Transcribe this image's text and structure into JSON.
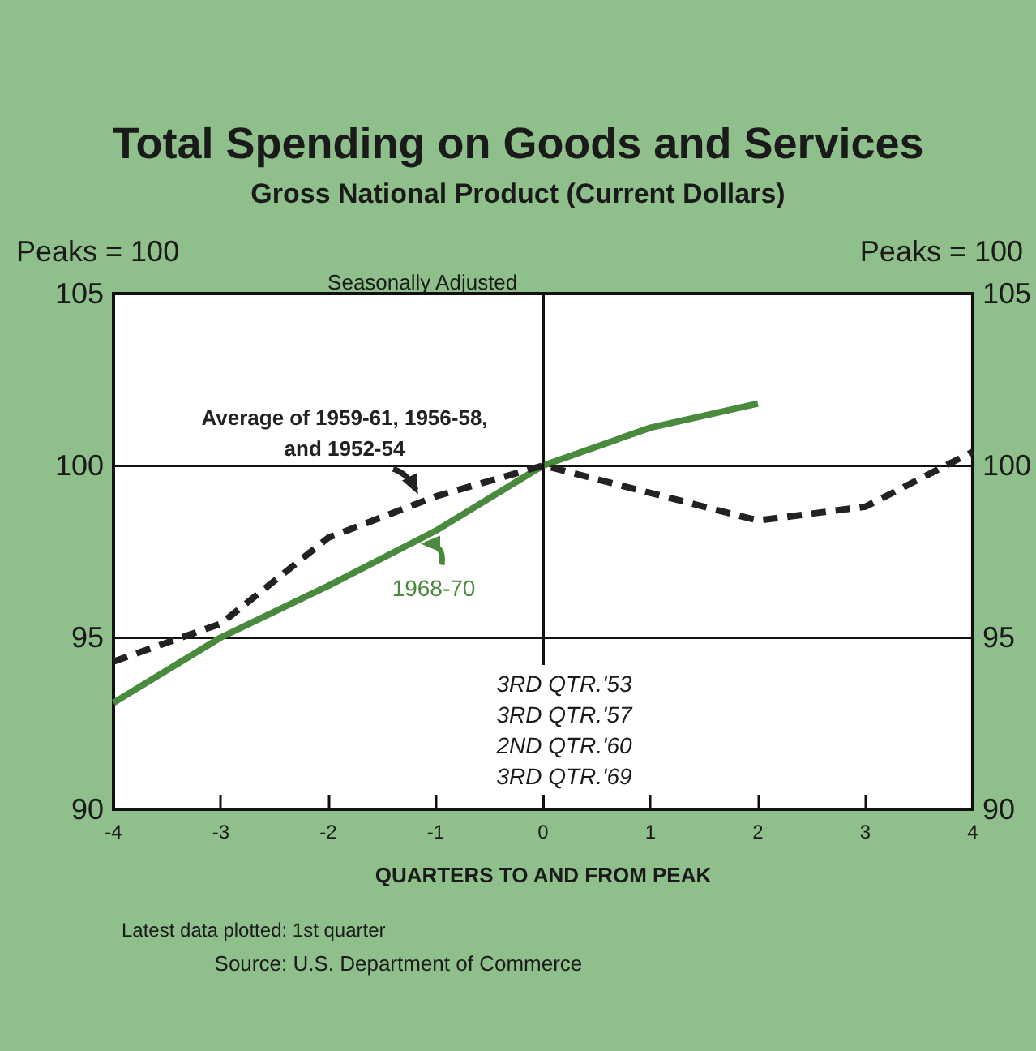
{
  "chart_data": {
    "type": "line",
    "title": "Total Spending on Goods and Services",
    "subtitle": "Gross National Product (Current Dollars)",
    "xlabel": "QUARTERS TO AND FROM PEAK",
    "ylabel": "Peaks = 100",
    "y2label": "Peaks = 100",
    "x": [
      -4,
      -3,
      -2,
      -1,
      0,
      1,
      2,
      3,
      4
    ],
    "series": [
      {
        "name": "Average of 1959-61, 1956-58,\nand 1952-54",
        "color": "#222222",
        "line_style": "dashed",
        "values": [
          94.3,
          95.4,
          97.9,
          99.1,
          100,
          99.2,
          98.4,
          98.8,
          100.4
        ]
      },
      {
        "name": "1968-70",
        "color": "#4a8a3e",
        "line_style": "solid",
        "values": [
          93.1,
          95.0,
          96.5,
          98.1,
          100,
          101.1,
          101.8,
          null,
          null
        ]
      }
    ],
    "xlim": [
      -4,
      4
    ],
    "xticks": [
      -4,
      -3,
      -2,
      -1,
      0,
      1,
      2,
      3,
      4
    ],
    "ylim": [
      90,
      105
    ],
    "yticks": [
      90,
      95,
      100,
      105
    ],
    "y2lim": [
      90,
      105
    ],
    "y2ticks": [
      90,
      95,
      100,
      105
    ],
    "grid": "y",
    "marker": "none",
    "ref_lines": [
      {
        "axis": "x",
        "value": 0,
        "color": "#111111"
      }
    ],
    "annotations": [
      "Seasonally Adjusted",
      "3RD QTR.'53\n3RD QTR.'57\n2ND QTR.'60\n3RD QTR.'69",
      "Latest data plotted: 1st quarter",
      "Source: U.S. Department of Commerce"
    ]
  }
}
